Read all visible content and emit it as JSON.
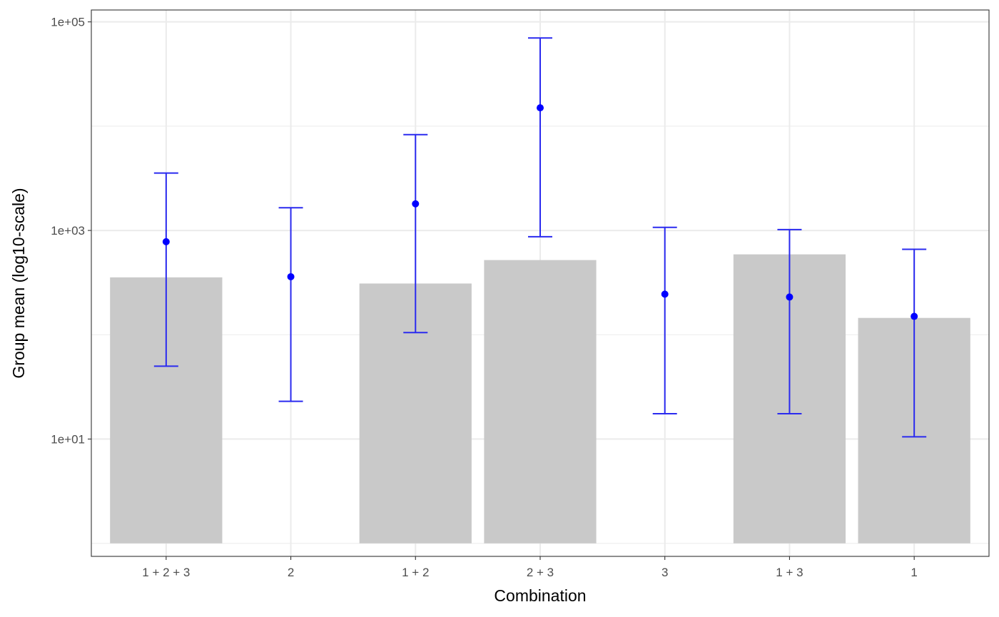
{
  "chart_data": {
    "type": "bar",
    "xlabel": "Combination",
    "ylabel": "Group mean (log10-scale)",
    "y_scale": "log10",
    "ylim": [
      0.75,
      130000
    ],
    "grid": true,
    "colors": {
      "bar": "#c9c9c9",
      "point": "#0000ff",
      "errorbar": "#2a2aef",
      "grid": "#ebebeb",
      "panel_border": "#333333"
    },
    "categories": [
      "1 + 2 + 3",
      "2",
      "1 + 2",
      "2 + 3",
      "3",
      "1 + 3",
      "1"
    ],
    "y_ticks": [
      {
        "value": 10,
        "label": "1e+01"
      },
      {
        "value": 1000,
        "label": "1e+03"
      },
      {
        "value": 100000,
        "label": "1e+05"
      }
    ],
    "bar_baseline": 1,
    "bars": [
      {
        "category": "1 + 2 + 3",
        "value": 355
      },
      {
        "category": "2",
        "value": null
      },
      {
        "category": "1 + 2",
        "value": 310
      },
      {
        "category": "2 + 3",
        "value": 520
      },
      {
        "category": "3",
        "value": null
      },
      {
        "category": "1 + 3",
        "value": 590
      },
      {
        "category": "1",
        "value": 145
      }
    ],
    "points": [
      {
        "category": "1 + 2 + 3",
        "mean": 780,
        "lower": 50,
        "upper": 3550
      },
      {
        "category": "2",
        "mean": 360,
        "lower": 23,
        "upper": 1650
      },
      {
        "category": "1 + 2",
        "mean": 1800,
        "lower": 105,
        "upper": 8300
      },
      {
        "category": "2 + 3",
        "mean": 15000,
        "lower": 870,
        "upper": 70000
      },
      {
        "category": "3",
        "mean": 245,
        "lower": 17.5,
        "upper": 1070
      },
      {
        "category": "1 + 3",
        "mean": 230,
        "lower": 17.5,
        "upper": 1020
      },
      {
        "category": "1",
        "mean": 150,
        "lower": 10.5,
        "upper": 660
      }
    ]
  }
}
